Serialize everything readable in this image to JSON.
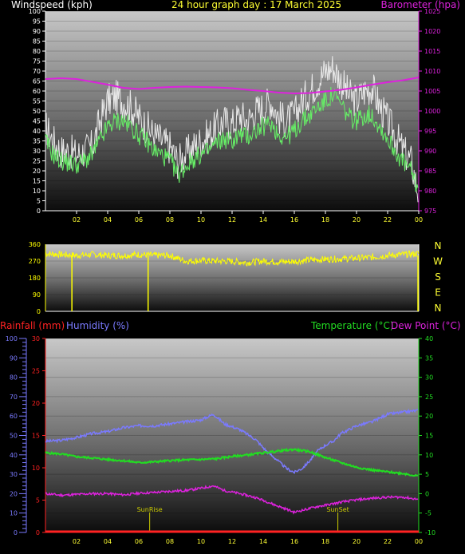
{
  "header": {
    "wind_label": "Windspeed (kph)",
    "title": "24 hour graph day : 17 March 2025",
    "baro_label": "Barometer (hpa)",
    "rain_label": "Rainfall (mm)",
    "hum_label": "Humidity (%)",
    "temp_label": "Temperature (°C)",
    "dew_label": "Dew Point (°C)"
  },
  "colors": {
    "wind_label": "#ffffff",
    "title": "#ffff33",
    "baro": "#dd22dd",
    "gust": "#e8e8e8",
    "avg": "#66ee66",
    "dir": "#ffff00",
    "rain": "#ff2222",
    "hum": "#7a7aff",
    "temp": "#22dd22",
    "dew": "#dd22dd",
    "marker": "#cccc00"
  },
  "chart_data": [
    {
      "type": "line",
      "name": "wind",
      "x_ticks": [
        "02",
        "04",
        "06",
        "08",
        "10",
        "12",
        "14",
        "16",
        "18",
        "20",
        "22",
        "00"
      ],
      "y_ticks": [
        0,
        5,
        10,
        15,
        20,
        25,
        30,
        35,
        40,
        45,
        50,
        55,
        60,
        65,
        70,
        75,
        80,
        85,
        90,
        95,
        100
      ],
      "ylim": [
        0,
        100
      ],
      "baro_ticks": [
        975,
        980,
        985,
        990,
        995,
        1000,
        1005,
        1010,
        1015,
        1020,
        1025
      ],
      "baro_lim": [
        975,
        1025
      ],
      "gust_points": [
        [
          0,
          42
        ],
        [
          0.5,
          35
        ],
        [
          1,
          30
        ],
        [
          1.5,
          30
        ],
        [
          2,
          28
        ],
        [
          2.5,
          30
        ],
        [
          3,
          32
        ],
        [
          3.5,
          45
        ],
        [
          4,
          55
        ],
        [
          4.5,
          57
        ],
        [
          5,
          55
        ],
        [
          5.5,
          52
        ],
        [
          6,
          47
        ],
        [
          6.5,
          42
        ],
        [
          7,
          38
        ],
        [
          7.5,
          35
        ],
        [
          8,
          32
        ],
        [
          8.5,
          25
        ],
        [
          9,
          28
        ],
        [
          9.5,
          32
        ],
        [
          10,
          35
        ],
        [
          10.5,
          38
        ],
        [
          11,
          42
        ],
        [
          11.5,
          45
        ],
        [
          12,
          43
        ],
        [
          12.5,
          48
        ],
        [
          13,
          45
        ],
        [
          13.5,
          50
        ],
        [
          14,
          52
        ],
        [
          14.5,
          55
        ],
        [
          15,
          47
        ],
        [
          15.5,
          45
        ],
        [
          16,
          48
        ],
        [
          16.5,
          55
        ],
        [
          17,
          60
        ],
        [
          17.5,
          65
        ],
        [
          18,
          70
        ],
        [
          18.5,
          72
        ],
        [
          19,
          65
        ],
        [
          19.5,
          58
        ],
        [
          20,
          55
        ],
        [
          20.5,
          60
        ],
        [
          21,
          62
        ],
        [
          21.5,
          52
        ],
        [
          22,
          45
        ],
        [
          22.5,
          38
        ],
        [
          23,
          30
        ],
        [
          23.5,
          25
        ],
        [
          24,
          8
        ]
      ],
      "avg_points": [
        [
          0,
          35
        ],
        [
          0.5,
          28
        ],
        [
          1,
          25
        ],
        [
          1.5,
          24
        ],
        [
          2,
          23
        ],
        [
          2.5,
          25
        ],
        [
          3,
          28
        ],
        [
          3.5,
          35
        ],
        [
          4,
          42
        ],
        [
          4.5,
          45
        ],
        [
          5,
          45
        ],
        [
          5.5,
          42
        ],
        [
          6,
          38
        ],
        [
          6.5,
          35
        ],
        [
          7,
          30
        ],
        [
          7.5,
          28
        ],
        [
          8,
          25
        ],
        [
          8.5,
          18
        ],
        [
          9,
          22
        ],
        [
          9.5,
          26
        ],
        [
          10,
          28
        ],
        [
          10.5,
          30
        ],
        [
          11,
          34
        ],
        [
          11.5,
          36
        ],
        [
          12,
          35
        ],
        [
          12.5,
          38
        ],
        [
          13,
          37
        ],
        [
          13.5,
          40
        ],
        [
          14,
          42
        ],
        [
          14.5,
          44
        ],
        [
          15,
          38
        ],
        [
          15.5,
          37
        ],
        [
          16,
          40
        ],
        [
          16.5,
          45
        ],
        [
          17,
          48
        ],
        [
          17.5,
          52
        ],
        [
          18,
          55
        ],
        [
          18.5,
          58
        ],
        [
          19,
          53
        ],
        [
          19.5,
          47
        ],
        [
          20,
          45
        ],
        [
          20.5,
          48
        ],
        [
          21,
          48
        ],
        [
          21.5,
          42
        ],
        [
          22,
          36
        ],
        [
          22.5,
          30
        ],
        [
          23,
          24
        ],
        [
          23.5,
          20
        ],
        [
          24,
          10
        ]
      ],
      "baro_points": [
        [
          0,
          1008
        ],
        [
          1,
          1008.2
        ],
        [
          2,
          1008
        ],
        [
          3,
          1007.3
        ],
        [
          4,
          1006.6
        ],
        [
          5,
          1005.8
        ],
        [
          6,
          1005.5
        ],
        [
          7,
          1005.8
        ],
        [
          8,
          1006
        ],
        [
          9,
          1006.1
        ],
        [
          10,
          1006
        ],
        [
          11,
          1005.9
        ],
        [
          12,
          1005.7
        ],
        [
          13,
          1005.3
        ],
        [
          14,
          1005
        ],
        [
          15,
          1004.6
        ],
        [
          16,
          1004.4
        ],
        [
          17,
          1004.5
        ],
        [
          18,
          1004.9
        ],
        [
          19,
          1005.3
        ],
        [
          20,
          1005.9
        ],
        [
          21,
          1006.6
        ],
        [
          22,
          1007.2
        ],
        [
          23,
          1007.7
        ],
        [
          24,
          1008.4
        ]
      ]
    },
    {
      "type": "line",
      "name": "direction",
      "y_ticks": [
        0,
        90,
        180,
        270,
        360
      ],
      "ylim": [
        0,
        360
      ],
      "compass": [
        "N",
        "W",
        "S",
        "E",
        "N"
      ],
      "points": [
        [
          0,
          310
        ],
        [
          1,
          305
        ],
        [
          2,
          300
        ],
        [
          3,
          305
        ],
        [
          4,
          300
        ],
        [
          5,
          300
        ],
        [
          6,
          305
        ],
        [
          7,
          300
        ],
        [
          8,
          300
        ],
        [
          9,
          270
        ],
        [
          10,
          272
        ],
        [
          11,
          270
        ],
        [
          12,
          268
        ],
        [
          13,
          262
        ],
        [
          14,
          270
        ],
        [
          15,
          265
        ],
        [
          16,
          268
        ],
        [
          17,
          275
        ],
        [
          18,
          280
        ],
        [
          19,
          282
        ],
        [
          20,
          285
        ],
        [
          21,
          290
        ],
        [
          22,
          300
        ],
        [
          23,
          305
        ],
        [
          24,
          310
        ]
      ],
      "drops": [
        1.7,
        6.6,
        23.95
      ]
    },
    {
      "type": "line",
      "name": "climate",
      "x_ticks": [
        "02",
        "04",
        "06",
        "08",
        "10",
        "12",
        "14",
        "16",
        "18",
        "20",
        "22",
        "00"
      ],
      "rain_ticks": [
        0,
        5,
        10,
        15,
        20,
        25,
        30
      ],
      "rain_lim": [
        0,
        30
      ],
      "hum_ticks": [
        0,
        10,
        20,
        30,
        40,
        50,
        60,
        70,
        80,
        90,
        100
      ],
      "hum_lim": [
        0,
        100
      ],
      "temp_ticks": [
        -10,
        -5,
        0,
        5,
        10,
        15,
        20,
        25,
        30,
        35,
        40
      ],
      "temp_lim": [
        -10,
        40
      ],
      "markers": [
        {
          "label": "SunRise",
          "x": 6.7
        },
        {
          "label": "SunSet",
          "x": 18.8
        }
      ],
      "humidity": [
        [
          0,
          47
        ],
        [
          1,
          47.5
        ],
        [
          2,
          49
        ],
        [
          3,
          51
        ],
        [
          4,
          52
        ],
        [
          5,
          54
        ],
        [
          6,
          55
        ],
        [
          7,
          55
        ],
        [
          8,
          56
        ],
        [
          9,
          57
        ],
        [
          10,
          58
        ],
        [
          10.8,
          61
        ],
        [
          11.5,
          56
        ],
        [
          12.5,
          53
        ],
        [
          13.5,
          48
        ],
        [
          14.2,
          42
        ],
        [
          14.8,
          38
        ],
        [
          15.5,
          33
        ],
        [
          16,
          31
        ],
        [
          16.5,
          33
        ],
        [
          17,
          37
        ],
        [
          17.5,
          42
        ],
        [
          18,
          45
        ],
        [
          18.5,
          47
        ],
        [
          19,
          51
        ],
        [
          20,
          55
        ],
        [
          21,
          57
        ],
        [
          21.5,
          59
        ],
        [
          22,
          61
        ],
        [
          23,
          62
        ],
        [
          24,
          63
        ]
      ],
      "temperature": [
        [
          0,
          10.5
        ],
        [
          1,
          10.2
        ],
        [
          2,
          9.5
        ],
        [
          3,
          9.2
        ],
        [
          4,
          8.8
        ],
        [
          5,
          8.5
        ],
        [
          6,
          8
        ],
        [
          7,
          8.2
        ],
        [
          8,
          8.5
        ],
        [
          9,
          8.7
        ],
        [
          10,
          8.8
        ],
        [
          11,
          9
        ],
        [
          12,
          9.6
        ],
        [
          13,
          10
        ],
        [
          14,
          10.5
        ],
        [
          15,
          11
        ],
        [
          16,
          11.4
        ],
        [
          17,
          10.8
        ],
        [
          18,
          9.3
        ],
        [
          19,
          8
        ],
        [
          20,
          6.8
        ],
        [
          21,
          6.1
        ],
        [
          22,
          5.6
        ],
        [
          23,
          5.2
        ],
        [
          24,
          4.5
        ]
      ],
      "dewpoint": [
        [
          0,
          0
        ],
        [
          1,
          -0.4
        ],
        [
          2,
          -0.2
        ],
        [
          3,
          0
        ],
        [
          4,
          0
        ],
        [
          5,
          -0.3
        ],
        [
          6,
          0.1
        ],
        [
          7,
          0.3
        ],
        [
          8,
          0.6
        ],
        [
          9,
          0.8
        ],
        [
          10,
          1.4
        ],
        [
          10.8,
          2
        ],
        [
          11.5,
          0.8
        ],
        [
          12.5,
          0
        ],
        [
          13.5,
          -1
        ],
        [
          14.2,
          -2
        ],
        [
          14.8,
          -3
        ],
        [
          15.5,
          -4
        ],
        [
          16,
          -4.8
        ],
        [
          16.5,
          -4.3
        ],
        [
          17,
          -3.8
        ],
        [
          17.5,
          -3.3
        ],
        [
          18,
          -3
        ],
        [
          18.5,
          -2.6
        ],
        [
          19,
          -2.2
        ],
        [
          20,
          -1.6
        ],
        [
          21,
          -1.2
        ],
        [
          22,
          -0.9
        ],
        [
          23,
          -0.9
        ],
        [
          24,
          -1.5
        ]
      ],
      "rainfall": [
        [
          0,
          0
        ],
        [
          24,
          0
        ]
      ]
    }
  ]
}
